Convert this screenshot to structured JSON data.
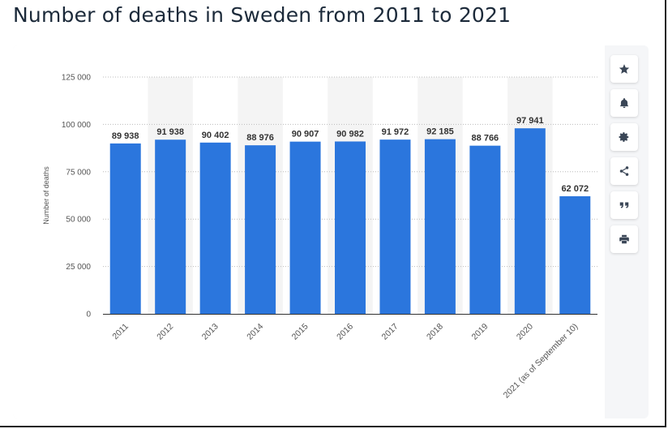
{
  "page": {
    "title": "Number of deaths in Sweden from 2011 to 2021"
  },
  "toolbar": [
    {
      "icon": "star-icon",
      "name": "favorite-button"
    },
    {
      "icon": "bell-icon",
      "name": "notification-button"
    },
    {
      "icon": "gear-icon",
      "name": "settings-button"
    },
    {
      "icon": "share-icon",
      "name": "share-button"
    },
    {
      "icon": "quote-icon",
      "name": "cite-button"
    },
    {
      "icon": "print-icon",
      "name": "print-button"
    }
  ],
  "colors": {
    "bar": "#2b76dd",
    "label": "#333333",
    "axis": "#555555",
    "grid": "#bcbcbc",
    "band": "#f4f4f4"
  },
  "chart_data": {
    "type": "bar",
    "title": "",
    "xlabel": "",
    "ylabel": "Number of deaths",
    "ylim": [
      0,
      125000
    ],
    "yticks": [
      0,
      25000,
      50000,
      75000,
      100000,
      125000
    ],
    "ytick_labels": [
      "0",
      "25 000",
      "50 000",
      "75 000",
      "100 000",
      "125 000"
    ],
    "grid": "horizontal dotted",
    "categories": [
      "2011",
      "2012",
      "2013",
      "2014",
      "2015",
      "2016",
      "2017",
      "2018",
      "2019",
      "2020",
      "2021 (as of September 10)"
    ],
    "values": [
      89938,
      91938,
      90402,
      88976,
      90907,
      90982,
      91972,
      92185,
      88766,
      97941,
      62072
    ],
    "value_labels": [
      "89 938",
      "91 938",
      "90 402",
      "88 976",
      "90 907",
      "90 982",
      "91 972",
      "92 185",
      "88 766",
      "97 941",
      "62 072"
    ]
  }
}
